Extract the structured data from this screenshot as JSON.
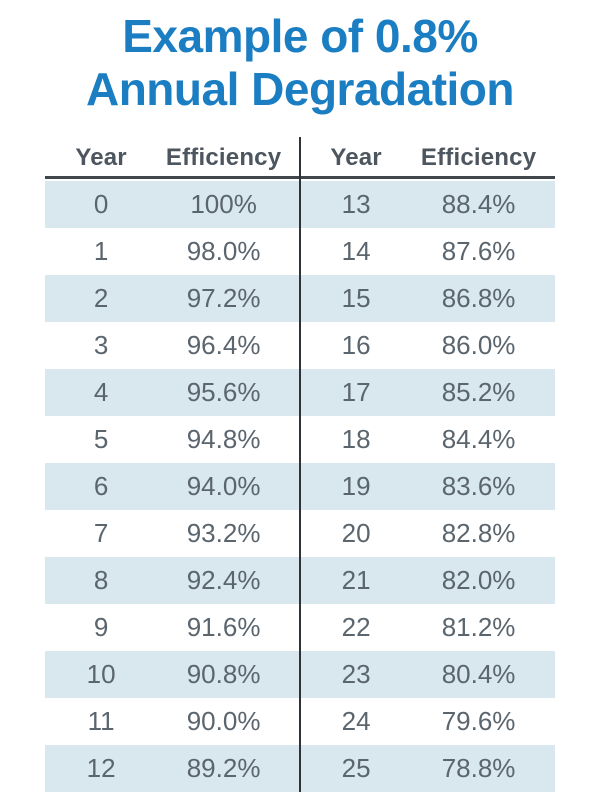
{
  "title": {
    "line1": "Example of 0.8%",
    "line2": "Annual Degradation"
  },
  "table": {
    "headers": [
      "Year",
      "Efficiency",
      "Year",
      "Efficiency"
    ],
    "rows": [
      [
        "0",
        "100%",
        "13",
        "88.4%"
      ],
      [
        "1",
        "98.0%",
        "14",
        "87.6%"
      ],
      [
        "2",
        "97.2%",
        "15",
        "86.8%"
      ],
      [
        "3",
        "96.4%",
        "16",
        "86.0%"
      ],
      [
        "4",
        "95.6%",
        "17",
        "85.2%"
      ],
      [
        "5",
        "94.8%",
        "18",
        "84.4%"
      ],
      [
        "6",
        "94.0%",
        "19",
        "83.6%"
      ],
      [
        "7",
        "93.2%",
        "20",
        "82.8%"
      ],
      [
        "8",
        "92.4%",
        "21",
        "82.0%"
      ],
      [
        "9",
        "91.6%",
        "22",
        "81.2%"
      ],
      [
        "10",
        "90.8%",
        "23",
        "80.4%"
      ],
      [
        "11",
        "90.0%",
        "24",
        "79.6%"
      ],
      [
        "12",
        "89.2%",
        "25",
        "78.8%"
      ]
    ]
  },
  "colors": {
    "title_blue": "#1b7ec2",
    "row_alt_blue": "#d9e7ee",
    "body_text": "#5b656e",
    "header_text": "#4d565f",
    "header_underline": "#40464c",
    "divider": "#2e3338"
  },
  "chart_data": {
    "type": "table",
    "title": "Example of 0.8% Annual Degradation",
    "columns": [
      "Year",
      "Efficiency"
    ],
    "annual_degradation_percent": 0.8,
    "years": [
      0,
      1,
      2,
      3,
      4,
      5,
      6,
      7,
      8,
      9,
      10,
      11,
      12,
      13,
      14,
      15,
      16,
      17,
      18,
      19,
      20,
      21,
      22,
      23,
      24,
      25
    ],
    "efficiency_percent": [
      100,
      98.0,
      97.2,
      96.4,
      95.6,
      94.8,
      94.0,
      93.2,
      92.4,
      91.6,
      90.8,
      90.0,
      89.2,
      88.4,
      87.6,
      86.8,
      86.0,
      85.2,
      84.4,
      83.6,
      82.8,
      82.0,
      81.2,
      80.4,
      79.6,
      78.8
    ],
    "layout": "two side-by-side Year/Efficiency column pairs split at year 13, alternating light blue row shading"
  }
}
